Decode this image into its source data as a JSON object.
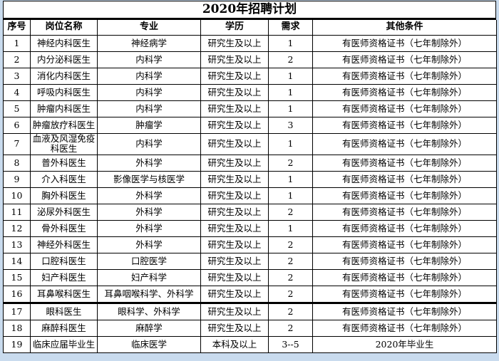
{
  "title": "2020年招聘计划",
  "colors": {
    "page_background": "#c9dbee",
    "table_background": "#ffffff",
    "border": "#000000",
    "text": "#000000"
  },
  "table": {
    "headers": [
      "序号",
      "岗位名称",
      "专业",
      "学历",
      "需求",
      "其他条件"
    ],
    "thick_border_after_row": 16,
    "rows": [
      [
        "1",
        "神经内科医生",
        "神经病学",
        "研究生及以上",
        "1",
        "有医师资格证书（七年制除外）"
      ],
      [
        "2",
        "内分泌科医生",
        "内科学",
        "研究生及以上",
        "2",
        "有医师资格证书（七年制除外）"
      ],
      [
        "3",
        "消化内科医生",
        "内科学",
        "研究生及以上",
        "1",
        "有医师资格证书（七年制除外）"
      ],
      [
        "4",
        "呼吸内科医生",
        "内科学",
        "研究生及以上",
        "1",
        "有医师资格证书（七年制除外）"
      ],
      [
        "5",
        "肿瘤内科医生",
        "内科学",
        "研究生及以上",
        "1",
        "有医师资格证书（七年制除外）"
      ],
      [
        "6",
        "肿瘤放疗科医生",
        "肿瘤学",
        "研究生及以上",
        "3",
        "有医师资格证书（七年制除外）"
      ],
      [
        "7",
        "血液及风湿免疫科医生",
        "内科学",
        "研究生及以上",
        "1",
        "有医师资格证书（七年制除外）"
      ],
      [
        "8",
        "普外科医生",
        "外科学",
        "研究生及以上",
        "2",
        "有医师资格证书（七年制除外）"
      ],
      [
        "9",
        "介入科医生",
        "影像医学与核医学",
        "研究生及以上",
        "1",
        "有医师资格证书（七年制除外）"
      ],
      [
        "10",
        "胸外科医生",
        "外科学",
        "研究生及以上",
        "1",
        "有医师资格证书（七年制除外）"
      ],
      [
        "11",
        "泌尿外科医生",
        "外科学",
        "研究生及以上",
        "2",
        "有医师资格证书（七年制除外）"
      ],
      [
        "12",
        "骨外科医生",
        "外科学",
        "研究生及以上",
        "1",
        "有医师资格证书（七年制除外）"
      ],
      [
        "13",
        "神经外科医生",
        "外科学",
        "研究生及以上",
        "2",
        "有医师资格证书（七年制除外）"
      ],
      [
        "14",
        "口腔科医生",
        "口腔医学",
        "研究生及以上",
        "2",
        "有医师资格证书（七年制除外）"
      ],
      [
        "15",
        "妇产科医生",
        "妇产科学",
        "研究生及以上",
        "2",
        "有医师资格证书（七年制除外）"
      ],
      [
        "16",
        "耳鼻喉科医生",
        "耳鼻咽喉科学、外科学",
        "研究生及以上",
        "2",
        "有医师资格证书（七年制除外）"
      ],
      [
        "17",
        "眼科医生",
        "眼科学、外科学",
        "研究生及以上",
        "2",
        "有医师资格证书（七年制除外）"
      ],
      [
        "18",
        "麻醉科医生",
        "麻醉学",
        "研究生及以上",
        "2",
        "有医师资格证书（七年制除外）"
      ],
      [
        "19",
        "临床应届毕业生",
        "临床医学",
        "本科及以上",
        "3--5",
        "2020年毕业生"
      ]
    ]
  }
}
